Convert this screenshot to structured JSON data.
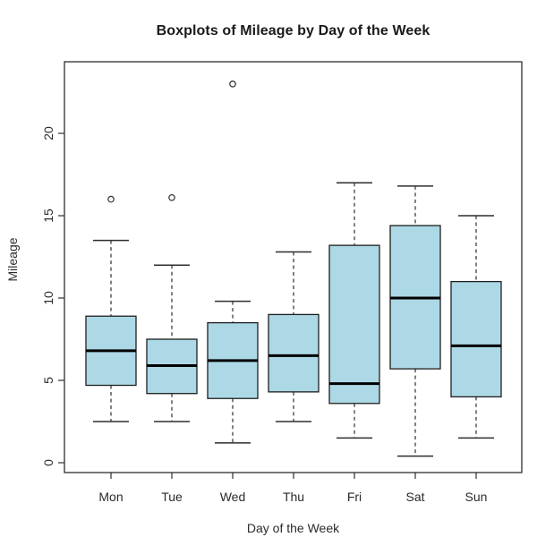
{
  "chart_data": {
    "type": "boxplot",
    "title": "Boxplots of Mileage by Day of the Week",
    "xlabel": "Day of the Week",
    "ylabel": "Mileage",
    "categories": [
      "Mon",
      "Tue",
      "Wed",
      "Thu",
      "Fri",
      "Sat",
      "Sun"
    ],
    "yticks": [
      0,
      5,
      10,
      15,
      20
    ],
    "ylim": [
      0,
      24
    ],
    "grid": false,
    "legend": "none",
    "box_fill_color": "#ADD8E6",
    "median_color": "#000000",
    "line_color": "#2e2e2e",
    "series": [
      {
        "name": "Mon",
        "whisker_low": 2.5,
        "q1": 4.7,
        "median": 6.8,
        "q3": 8.9,
        "whisker_high": 13.5,
        "outliers": [
          16
        ]
      },
      {
        "name": "Tue",
        "whisker_low": 2.5,
        "q1": 4.2,
        "median": 5.9,
        "q3": 7.5,
        "whisker_high": 12.0,
        "outliers": [
          16.1
        ]
      },
      {
        "name": "Wed",
        "whisker_low": 1.2,
        "q1": 3.9,
        "median": 6.2,
        "q3": 8.5,
        "whisker_high": 9.8,
        "outliers": [
          23
        ]
      },
      {
        "name": "Thu",
        "whisker_low": 2.5,
        "q1": 4.3,
        "median": 6.5,
        "q3": 9.0,
        "whisker_high": 12.8,
        "outliers": []
      },
      {
        "name": "Fri",
        "whisker_low": 1.5,
        "q1": 3.6,
        "median": 4.8,
        "q3": 13.2,
        "whisker_high": 17.0,
        "outliers": []
      },
      {
        "name": "Sat",
        "whisker_low": 0.4,
        "q1": 5.7,
        "median": 10.0,
        "q3": 14.4,
        "whisker_high": 16.8,
        "outliers": []
      },
      {
        "name": "Sun",
        "whisker_low": 1.5,
        "q1": 4.0,
        "median": 7.1,
        "q3": 11.0,
        "whisker_high": 15.0,
        "outliers": []
      }
    ]
  }
}
